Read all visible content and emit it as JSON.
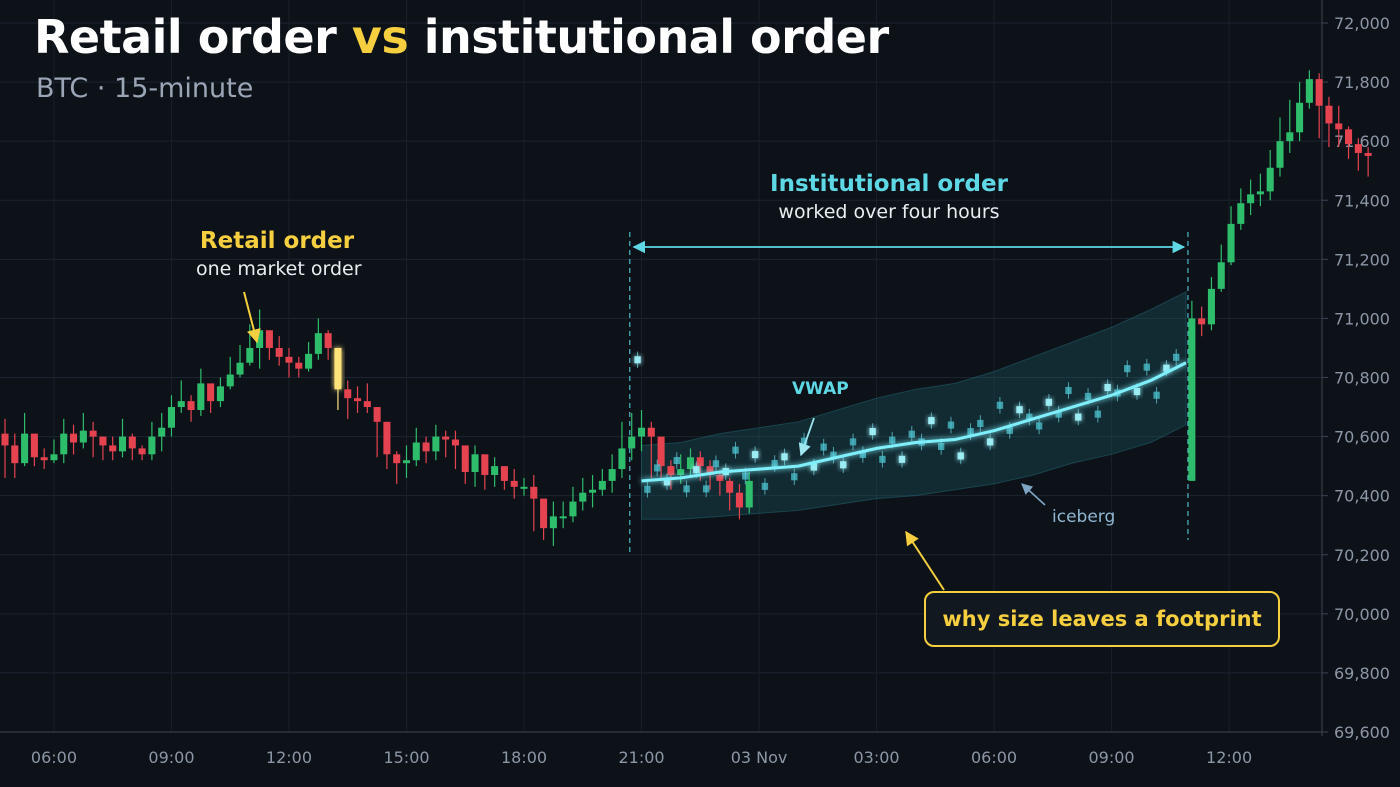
{
  "title": {
    "part1": "Retail order ",
    "part2": "vs",
    "part3": " institutional order"
  },
  "subtitle": "BTC · 15-minute",
  "annotations": {
    "retail_heading": "Retail order",
    "retail_sub": "one market order",
    "institutional_heading": "Institutional order",
    "institutional_sub": "worked over four hours",
    "vwap": "VWAP",
    "iceberg": "iceberg",
    "callout": "why size leaves a footprint"
  },
  "colors": {
    "background": "#0d1219",
    "up_candle": "#2ebd6b",
    "down_candle": "#e5434f",
    "retail_accent": "#f5cf3f",
    "institutional_accent": "#5fd8e6"
  },
  "chart_data": {
    "type": "candlestick",
    "y_axis_position": "right",
    "ylim": [
      69600,
      72000
    ],
    "yticks": [
      {
        "v": 72000,
        "label": "72,000"
      },
      {
        "v": 71800,
        "label": "71,800"
      },
      {
        "v": 71600,
        "label": "71,600"
      },
      {
        "v": 71400,
        "label": "71,400"
      },
      {
        "v": 71200,
        "label": "71,200"
      },
      {
        "v": 71000,
        "label": "71,000"
      },
      {
        "v": 70800,
        "label": "70,800"
      },
      {
        "v": 70600,
        "label": "70,600"
      },
      {
        "v": 70400,
        "label": "70,400"
      },
      {
        "v": 70200,
        "label": "70,200"
      },
      {
        "v": 70000,
        "label": "70,000"
      },
      {
        "v": 69800,
        "label": "69,800"
      },
      {
        "v": 69600,
        "label": "69,600"
      }
    ],
    "xlim": [
      4.75,
      38.5
    ],
    "xticks": [
      {
        "t": 6,
        "label": "06:00"
      },
      {
        "t": 9,
        "label": "09:00"
      },
      {
        "t": 12,
        "label": "12:00"
      },
      {
        "t": 15,
        "label": "15:00"
      },
      {
        "t": 18,
        "label": "18:00"
      },
      {
        "t": 21,
        "label": "21:00"
      },
      {
        "t": 24,
        "label": "03 Nov"
      },
      {
        "t": 27,
        "label": "03:00"
      },
      {
        "t": 30,
        "label": "06:00"
      },
      {
        "t": 33,
        "label": "09:00"
      },
      {
        "t": 36,
        "label": "12:00"
      }
    ],
    "x_unit": "hours from 00:00 on the first day shown; each candle is 15 minutes",
    "candle_interval_hours": 0.25,
    "first_candle_t": 4.75,
    "closes": [
      70570,
      70510,
      70610,
      70530,
      70520,
      70540,
      70610,
      70580,
      70620,
      70600,
      70570,
      70550,
      70600,
      70560,
      70540,
      70600,
      70630,
      70700,
      70720,
      70690,
      70780,
      70720,
      70770,
      70810,
      70850,
      70900,
      70960,
      70900,
      70870,
      70850,
      70830,
      70880,
      70950,
      70900,
      70760,
      70730,
      70720,
      70700,
      70650,
      70540,
      70510,
      70520,
      70580,
      70550,
      70600,
      70590,
      70570,
      70480,
      70540,
      70470,
      70500,
      70450,
      70430,
      70430,
      70390,
      70290,
      70330,
      70330,
      70380,
      70410,
      70420,
      70450,
      70490,
      70560,
      70600,
      70630,
      70600,
      70500,
      70470,
      70490,
      70530,
      70500,
      70470,
      70450,
      70410,
      70360,
      70450
    ],
    "highs": [
      70660,
      70610,
      70680,
      70590,
      70560,
      70590,
      70660,
      70640,
      70680,
      70650,
      70600,
      70600,
      70660,
      70610,
      70570,
      70650,
      70680,
      70740,
      70790,
      70740,
      70830,
      70770,
      70800,
      70870,
      70910,
      70980,
      71030,
      70940,
      70940,
      70900,
      70870,
      70920,
      71000,
      70960,
      70810,
      70790,
      70770,
      70780,
      70700,
      70600,
      70550,
      70570,
      70630,
      70600,
      70640,
      70620,
      70620,
      70560,
      70570,
      70540,
      70530,
      70500,
      70490,
      70460,
      70470,
      70340,
      70380,
      70380,
      70430,
      70460,
      70470,
      70490,
      70540,
      70650,
      70680,
      70690,
      70650,
      70560,
      70520,
      70540,
      70560,
      70550,
      70520,
      70480,
      70460,
      70440,
      70480
    ],
    "lows": [
      70460,
      70460,
      70500,
      70500,
      70490,
      70510,
      70510,
      70540,
      70560,
      70530,
      70520,
      70520,
      70530,
      70520,
      70520,
      70520,
      70550,
      70600,
      70680,
      70650,
      70670,
      70680,
      70700,
      70760,
      70800,
      70840,
      70830,
      70860,
      70840,
      70800,
      70800,
      70820,
      70860,
      70860,
      70690,
      70660,
      70680,
      70680,
      70530,
      70490,
      70440,
      70460,
      70500,
      70510,
      70520,
      70530,
      70490,
      70440,
      70430,
      70420,
      70430,
      70420,
      70390,
      70400,
      70280,
      70250,
      70230,
      70290,
      70310,
      70350,
      70360,
      70400,
      70410,
      70460,
      70520,
      70550,
      70460,
      70460,
      70420,
      70440,
      70460,
      70450,
      70420,
      70400,
      70350,
      70320,
      70340
    ],
    "retail_candle_index": 34,
    "vwap": {
      "t": [
        21.0,
        22.0,
        23.0,
        24.0,
        25.0,
        26.0,
        27.0,
        28.0,
        29.0,
        30.0,
        31.0,
        32.0,
        33.0,
        34.0,
        34.9
      ],
      "v": [
        70450,
        70460,
        70480,
        70490,
        70500,
        70530,
        70560,
        70580,
        70590,
        70620,
        70660,
        70700,
        70740,
        70790,
        70850
      ]
    },
    "band_upper": [
      70570,
      70580,
      70610,
      70630,
      70650,
      70690,
      70730,
      70760,
      70780,
      70820,
      70870,
      70920,
      70970,
      71030,
      71090
    ],
    "band_lower": [
      70320,
      70320,
      70330,
      70340,
      70350,
      70370,
      70390,
      70400,
      70420,
      70440,
      70470,
      70510,
      70540,
      70580,
      70640
    ],
    "institutional_window": [
      20.7,
      34.95
    ],
    "post_closes": [
      71000,
      70980,
      71100,
      71190,
      71320,
      71390,
      71420,
      71430,
      71510,
      71600,
      71630,
      71730,
      71810,
      71720,
      71660,
      71640,
      71590,
      71560,
      71550
    ],
    "post_highs": [
      71060,
      71040,
      71140,
      71250,
      71380,
      71440,
      71470,
      71490,
      71570,
      71680,
      71740,
      71800,
      71840,
      71830,
      71750,
      71720,
      71650,
      71610,
      71580
    ],
    "post_lows": [
      70940,
      70940,
      70960,
      71090,
      71180,
      71300,
      71350,
      71380,
      71400,
      71480,
      71560,
      71600,
      71710,
      71610,
      71580,
      71580,
      71540,
      71500,
      71480
    ]
  }
}
